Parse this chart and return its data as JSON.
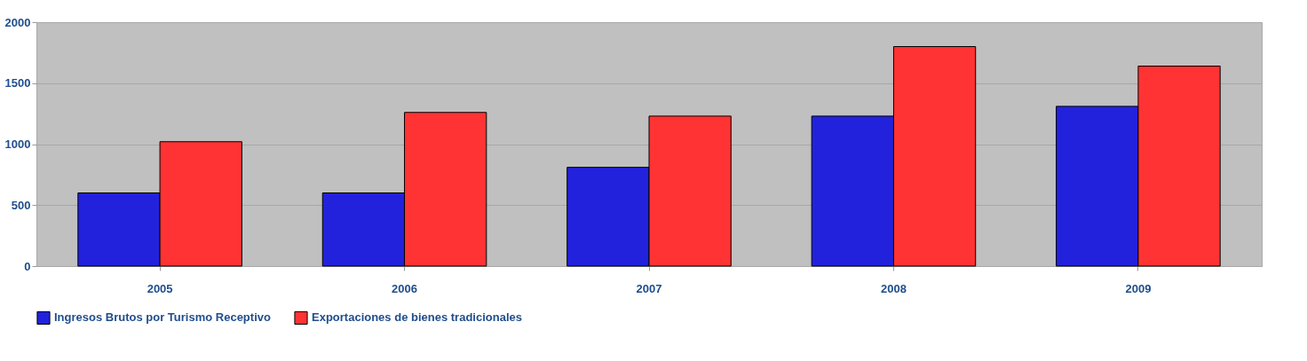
{
  "chart_data": {
    "type": "bar",
    "categories": [
      "2005",
      "2006",
      "2007",
      "2008",
      "2009"
    ],
    "series": [
      {
        "name": "Ingresos Brutos  por Turismo Receptivo",
        "color": "#2222dd",
        "values": [
          600,
          600,
          810,
          1230,
          1310
        ]
      },
      {
        "name": "Exportaciones de bienes tradicionales",
        "color": "#ff3333",
        "values": [
          1020,
          1260,
          1230,
          1800,
          1640
        ]
      }
    ],
    "ylim": [
      0,
      2000
    ],
    "yticks": [
      0,
      500,
      1000,
      1500,
      2000
    ],
    "grid": "y",
    "legend": "bottom"
  }
}
